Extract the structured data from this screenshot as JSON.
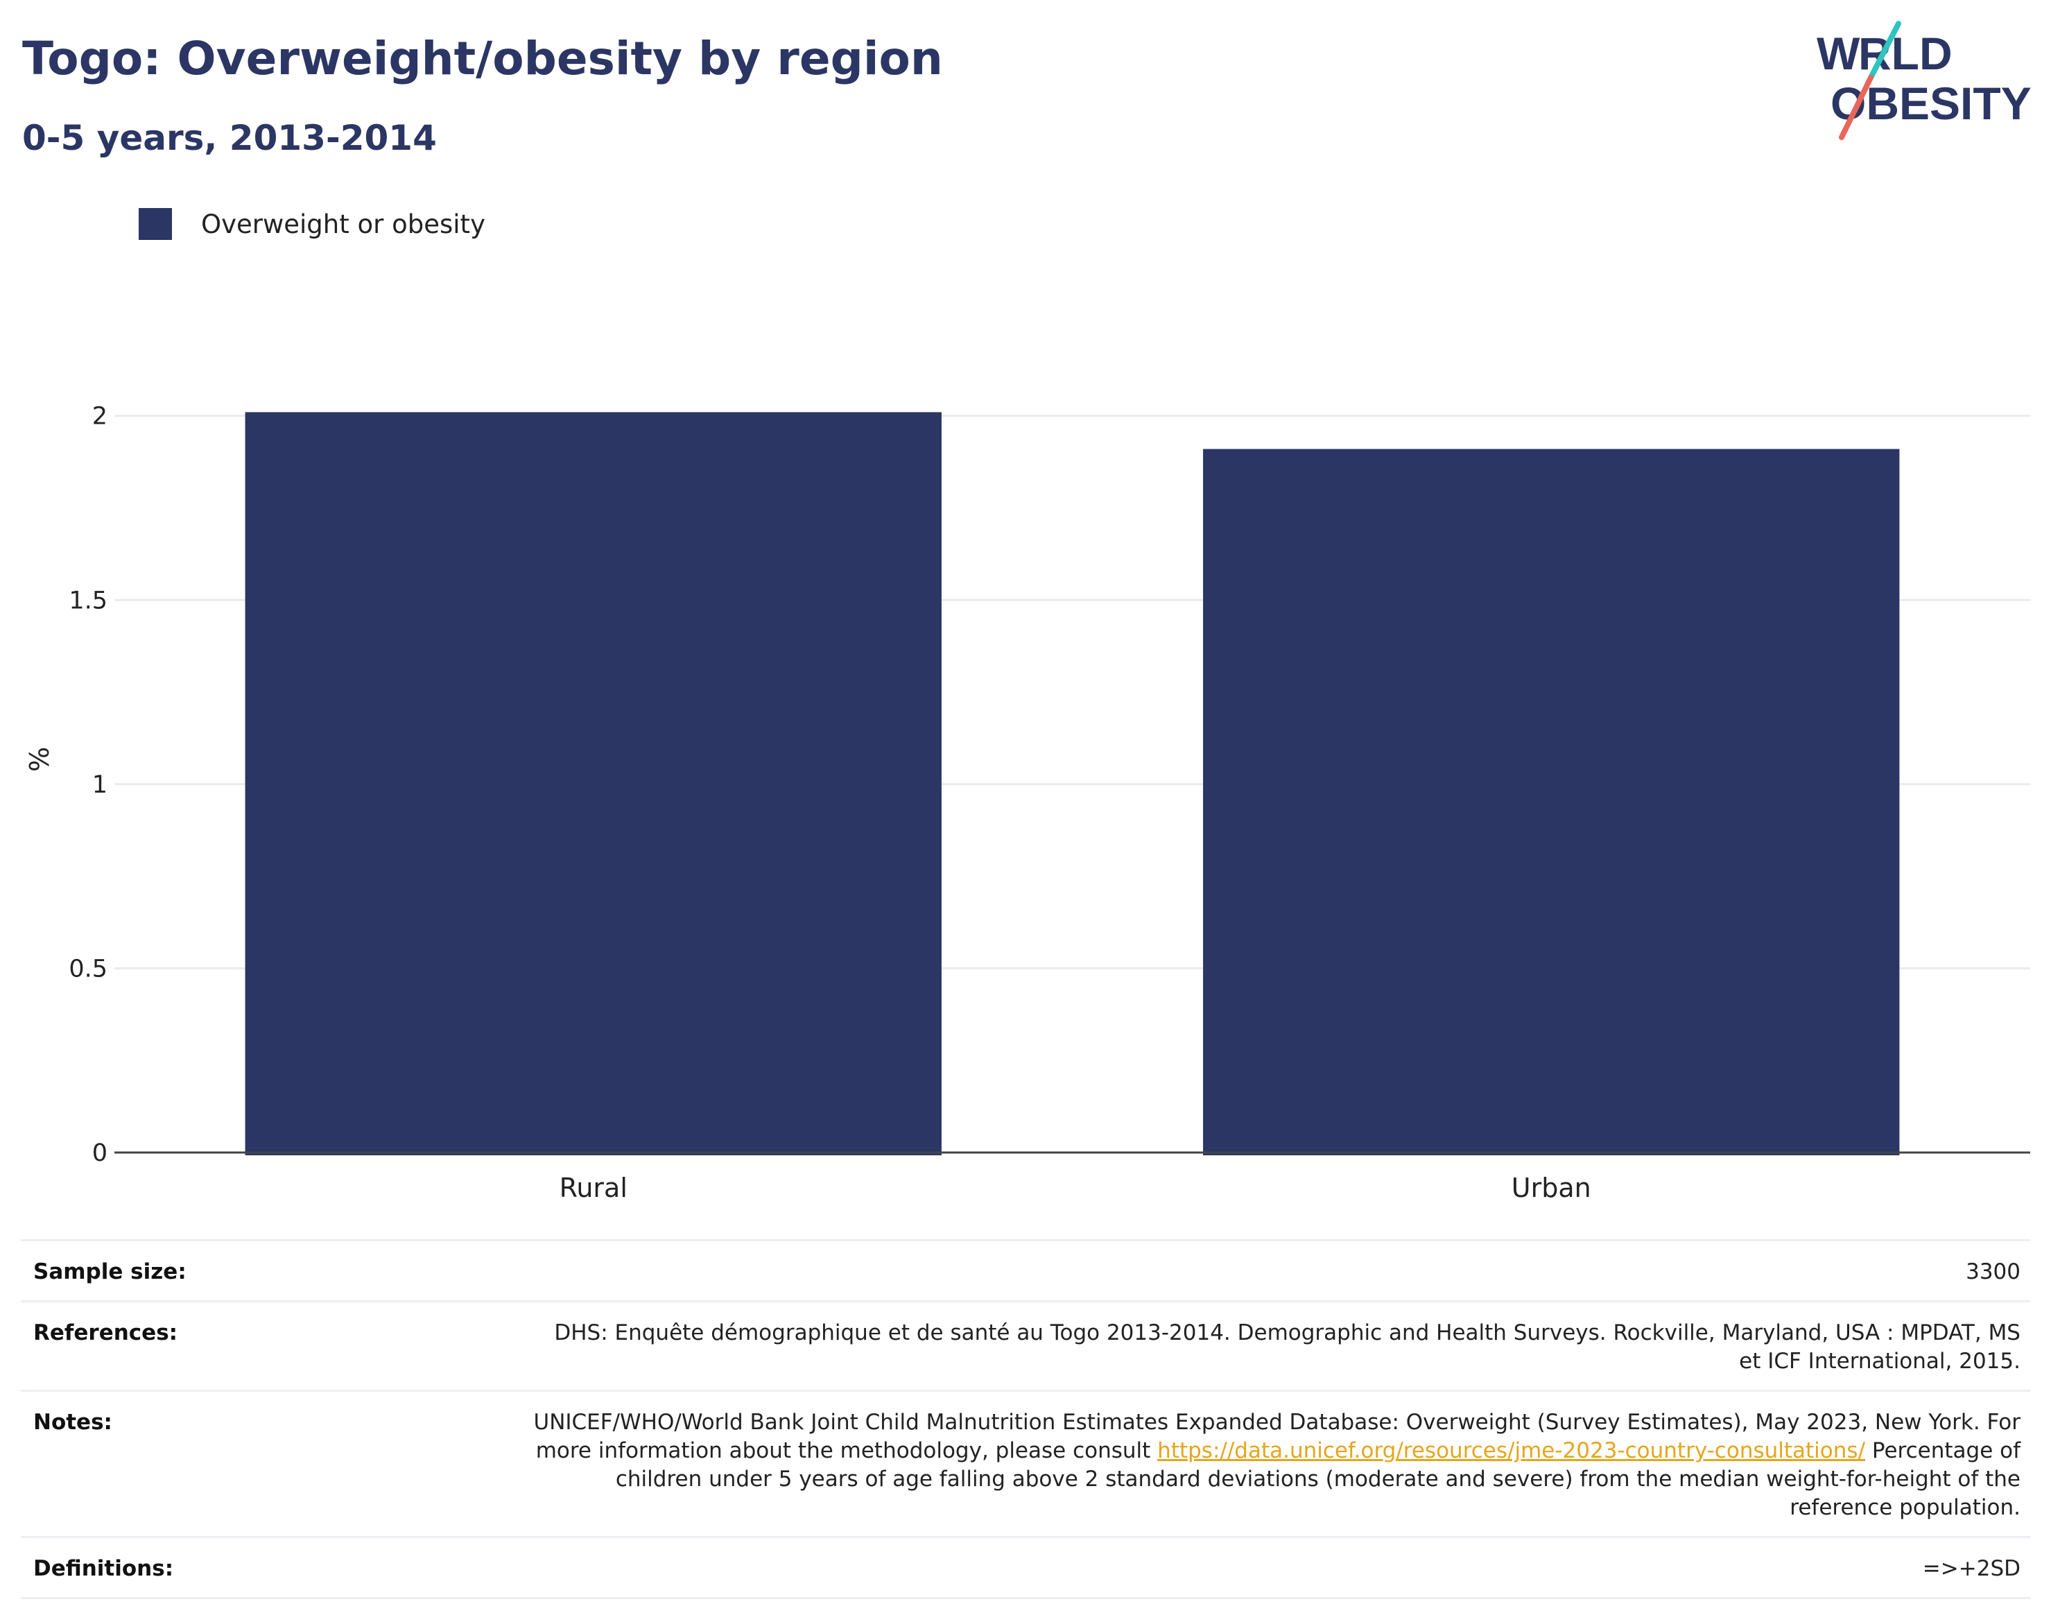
{
  "header": {
    "title": "Togo: Overweight/obesity by region",
    "subtitle": "0-5 years, 2013-2014"
  },
  "logo": {
    "line1": "WORLD",
    "line2": "OBESITY",
    "text_color": "#2b3664",
    "slash_colors": [
      "#2ec4c0",
      "#e8675a"
    ]
  },
  "legend": {
    "label": "Overweight or obesity",
    "color": "#2b3664"
  },
  "chart_data": {
    "type": "bar",
    "categories": [
      "Rural",
      "Urban"
    ],
    "series": [
      {
        "name": "Overweight or obesity",
        "values": [
          2.01,
          1.91
        ],
        "color": "#2b3664"
      }
    ],
    "ylabel": "%",
    "xlabel": "",
    "ylim": [
      0,
      2.15
    ],
    "yticks": [
      0,
      0.5,
      1,
      1.5,
      2
    ],
    "ytick_labels": [
      "0",
      "0.5",
      "1",
      "1.5",
      "2"
    ],
    "grid": true
  },
  "meta": {
    "sample_size_label": "Sample size:",
    "sample_size_value": "3300",
    "references_label": "References:",
    "references_value": "DHS: Enquête démographique et de santé au Togo 2013-2014. Demographic and Health Surveys. Rockville, Maryland, USA : MPDAT, MS et ICF International, 2015.",
    "notes_label": "Notes:",
    "notes_text_1": "UNICEF/WHO/World Bank Joint Child Malnutrition Estimates Expanded Database: Overweight (Survey Estimates), May 2023, New York. For more information about the methodology, please consult",
    "notes_link": "https://data.unicef.org/resources/jme-2023-country-consultations/",
    "notes_text_2": "Percentage of children under 5 years of age falling above 2 standard deviations (moderate and severe) from the median weight-for-height of the reference population.",
    "definitions_label": "Definitions:",
    "definitions_value": "=>+2SD"
  }
}
